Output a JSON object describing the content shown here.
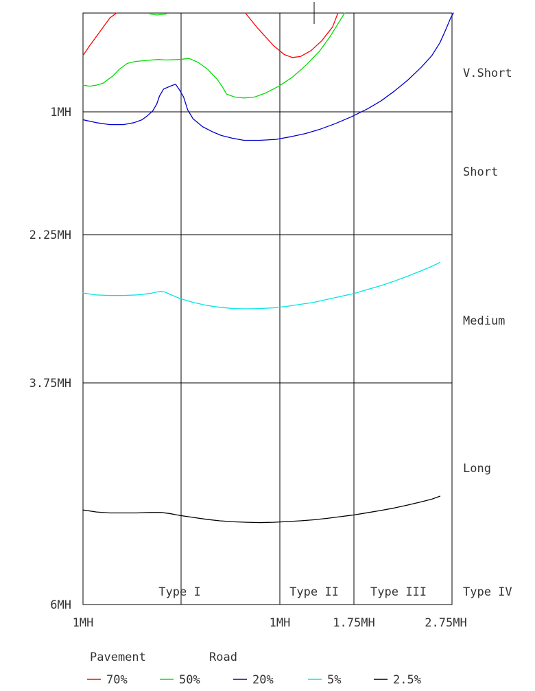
{
  "chart_data": {
    "type": "line",
    "title": "",
    "xlabel": "",
    "ylabel": "",
    "x_tick_labels": [
      "1MH",
      "1MH",
      "1.75MH",
      "2.75MH"
    ],
    "y_tick_labels": [
      "1MH",
      "2.25MH",
      "3.75MH",
      "6MH"
    ],
    "type_labels": [
      "Type I",
      "Type II",
      "Type III",
      "Type IV"
    ],
    "distance_labels": [
      "V.Short",
      "Short",
      "Medium",
      "Long"
    ],
    "legend": {
      "headers": [
        "Pavement",
        "Road"
      ],
      "entries": [
        {
          "label": "70%",
          "color": "#ff0000"
        },
        {
          "label": "50%",
          "color": "#00dd00"
        },
        {
          "label": "20%",
          "color": "#0000cc"
        },
        {
          "label": "5%",
          "color": "#00e5e5"
        },
        {
          "label": "2.5%",
          "color": "#000000"
        }
      ]
    },
    "series": [
      {
        "label": "70%",
        "color": "#ff0000",
        "segments": [
          [
            [
              0.0,
              0.43
            ],
            [
              0.05,
              0.33
            ],
            [
              0.12,
              0.2
            ],
            [
              0.2,
              0.05
            ],
            [
              0.25,
              0.0
            ]
          ],
          [
            [
              1.21,
              0.0
            ],
            [
              1.3,
              0.15
            ],
            [
              1.42,
              0.33
            ],
            [
              1.5,
              0.42
            ],
            [
              1.56,
              0.45
            ],
            [
              1.62,
              0.44
            ],
            [
              1.7,
              0.38
            ],
            [
              1.78,
              0.28
            ],
            [
              1.86,
              0.14
            ],
            [
              1.9,
              0.0
            ]
          ]
        ]
      },
      {
        "label": "50%",
        "color": "#00dd00",
        "segments": [
          [
            [
              0.5,
              0.01
            ],
            [
              0.55,
              0.02
            ],
            [
              0.58,
              0.015
            ],
            [
              0.62,
              0.01
            ]
          ],
          [
            [
              0.0,
              0.73
            ],
            [
              0.05,
              0.74
            ],
            [
              0.1,
              0.73
            ],
            [
              0.15,
              0.71
            ],
            [
              0.22,
              0.64
            ],
            [
              0.27,
              0.57
            ],
            [
              0.33,
              0.51
            ],
            [
              0.39,
              0.49
            ],
            [
              0.47,
              0.48
            ],
            [
              0.56,
              0.47
            ],
            [
              0.62,
              0.475
            ],
            [
              0.72,
              0.47
            ],
            [
              0.79,
              0.46
            ],
            [
              0.86,
              0.5
            ],
            [
              0.93,
              0.57
            ],
            [
              1.0,
              0.67
            ],
            [
              1.04,
              0.75
            ],
            [
              1.07,
              0.82
            ],
            [
              1.13,
              0.85
            ],
            [
              1.2,
              0.86
            ],
            [
              1.28,
              0.85
            ],
            [
              1.36,
              0.81
            ],
            [
              1.46,
              0.74
            ],
            [
              1.56,
              0.65
            ],
            [
              1.66,
              0.53
            ],
            [
              1.76,
              0.39
            ],
            [
              1.84,
              0.24
            ],
            [
              1.9,
              0.11
            ],
            [
              1.95,
              0.0
            ]
          ]
        ]
      },
      {
        "label": "20%",
        "color": "#0000cc",
        "segments": [
          [
            [
              0.0,
              1.08
            ],
            [
              0.1,
              1.11
            ],
            [
              0.2,
              1.13
            ],
            [
              0.3,
              1.13
            ],
            [
              0.38,
              1.11
            ],
            [
              0.44,
              1.08
            ],
            [
              0.48,
              1.04
            ],
            [
              0.52,
              0.99
            ],
            [
              0.55,
              0.92
            ],
            [
              0.57,
              0.84
            ],
            [
              0.6,
              0.77
            ],
            [
              0.65,
              0.74
            ],
            [
              0.69,
              0.72
            ],
            [
              0.72,
              0.78
            ],
            [
              0.75,
              0.85
            ],
            [
              0.78,
              0.98
            ],
            [
              0.82,
              1.07
            ],
            [
              0.89,
              1.15
            ],
            [
              0.96,
              1.2
            ],
            [
              1.03,
              1.24
            ],
            [
              1.12,
              1.27
            ],
            [
              1.2,
              1.29
            ],
            [
              1.32,
              1.29
            ],
            [
              1.44,
              1.28
            ],
            [
              1.56,
              1.25
            ],
            [
              1.66,
              1.22
            ],
            [
              1.76,
              1.18
            ],
            [
              1.88,
              1.12
            ],
            [
              2.0,
              1.05
            ],
            [
              2.12,
              0.97
            ],
            [
              2.22,
              0.89
            ],
            [
              2.32,
              0.79
            ],
            [
              2.42,
              0.68
            ],
            [
              2.52,
              0.55
            ],
            [
              2.6,
              0.43
            ],
            [
              2.66,
              0.3
            ],
            [
              2.7,
              0.18
            ],
            [
              2.74,
              0.05
            ],
            [
              2.76,
              0.0
            ]
          ]
        ]
      },
      {
        "label": "5%",
        "color": "#00e5e5",
        "segments": [
          [
            [
              0.0,
              2.84
            ],
            [
              0.1,
              2.86
            ],
            [
              0.2,
              2.865
            ],
            [
              0.3,
              2.865
            ],
            [
              0.4,
              2.86
            ],
            [
              0.5,
              2.845
            ],
            [
              0.55,
              2.83
            ],
            [
              0.58,
              2.825
            ],
            [
              0.61,
              2.83
            ],
            [
              0.65,
              2.855
            ],
            [
              0.72,
              2.895
            ],
            [
              0.82,
              2.935
            ],
            [
              0.92,
              2.965
            ],
            [
              1.02,
              2.985
            ],
            [
              1.12,
              2.997
            ],
            [
              1.22,
              3.0
            ],
            [
              1.32,
              2.997
            ],
            [
              1.42,
              2.99
            ],
            [
              1.52,
              2.975
            ],
            [
              1.62,
              2.955
            ],
            [
              1.72,
              2.935
            ],
            [
              1.82,
              2.905
            ],
            [
              1.92,
              2.875
            ],
            [
              2.02,
              2.845
            ],
            [
              2.12,
              2.805
            ],
            [
              2.22,
              2.765
            ],
            [
              2.32,
              2.72
            ],
            [
              2.42,
              2.67
            ],
            [
              2.52,
              2.615
            ],
            [
              2.6,
              2.57
            ],
            [
              2.66,
              2.53
            ]
          ]
        ]
      },
      {
        "label": "2.5%",
        "color": "#000000",
        "segments": [
          [
            [
              0.0,
              5.04
            ],
            [
              0.1,
              5.06
            ],
            [
              0.2,
              5.07
            ],
            [
              0.3,
              5.07
            ],
            [
              0.4,
              5.07
            ],
            [
              0.5,
              5.065
            ],
            [
              0.58,
              5.065
            ],
            [
              0.64,
              5.075
            ],
            [
              0.72,
              5.095
            ],
            [
              0.82,
              5.115
            ],
            [
              0.92,
              5.135
            ],
            [
              1.02,
              5.15
            ],
            [
              1.12,
              5.16
            ],
            [
              1.22,
              5.165
            ],
            [
              1.32,
              5.168
            ],
            [
              1.42,
              5.165
            ],
            [
              1.52,
              5.158
            ],
            [
              1.62,
              5.15
            ],
            [
              1.72,
              5.14
            ],
            [
              1.82,
              5.125
            ],
            [
              1.92,
              5.108
            ],
            [
              2.02,
              5.09
            ],
            [
              2.12,
              5.068
            ],
            [
              2.22,
              5.045
            ],
            [
              2.32,
              5.02
            ],
            [
              2.42,
              4.99
            ],
            [
              2.52,
              4.958
            ],
            [
              2.6,
              4.93
            ],
            [
              2.66,
              4.9
            ]
          ]
        ]
      }
    ]
  }
}
